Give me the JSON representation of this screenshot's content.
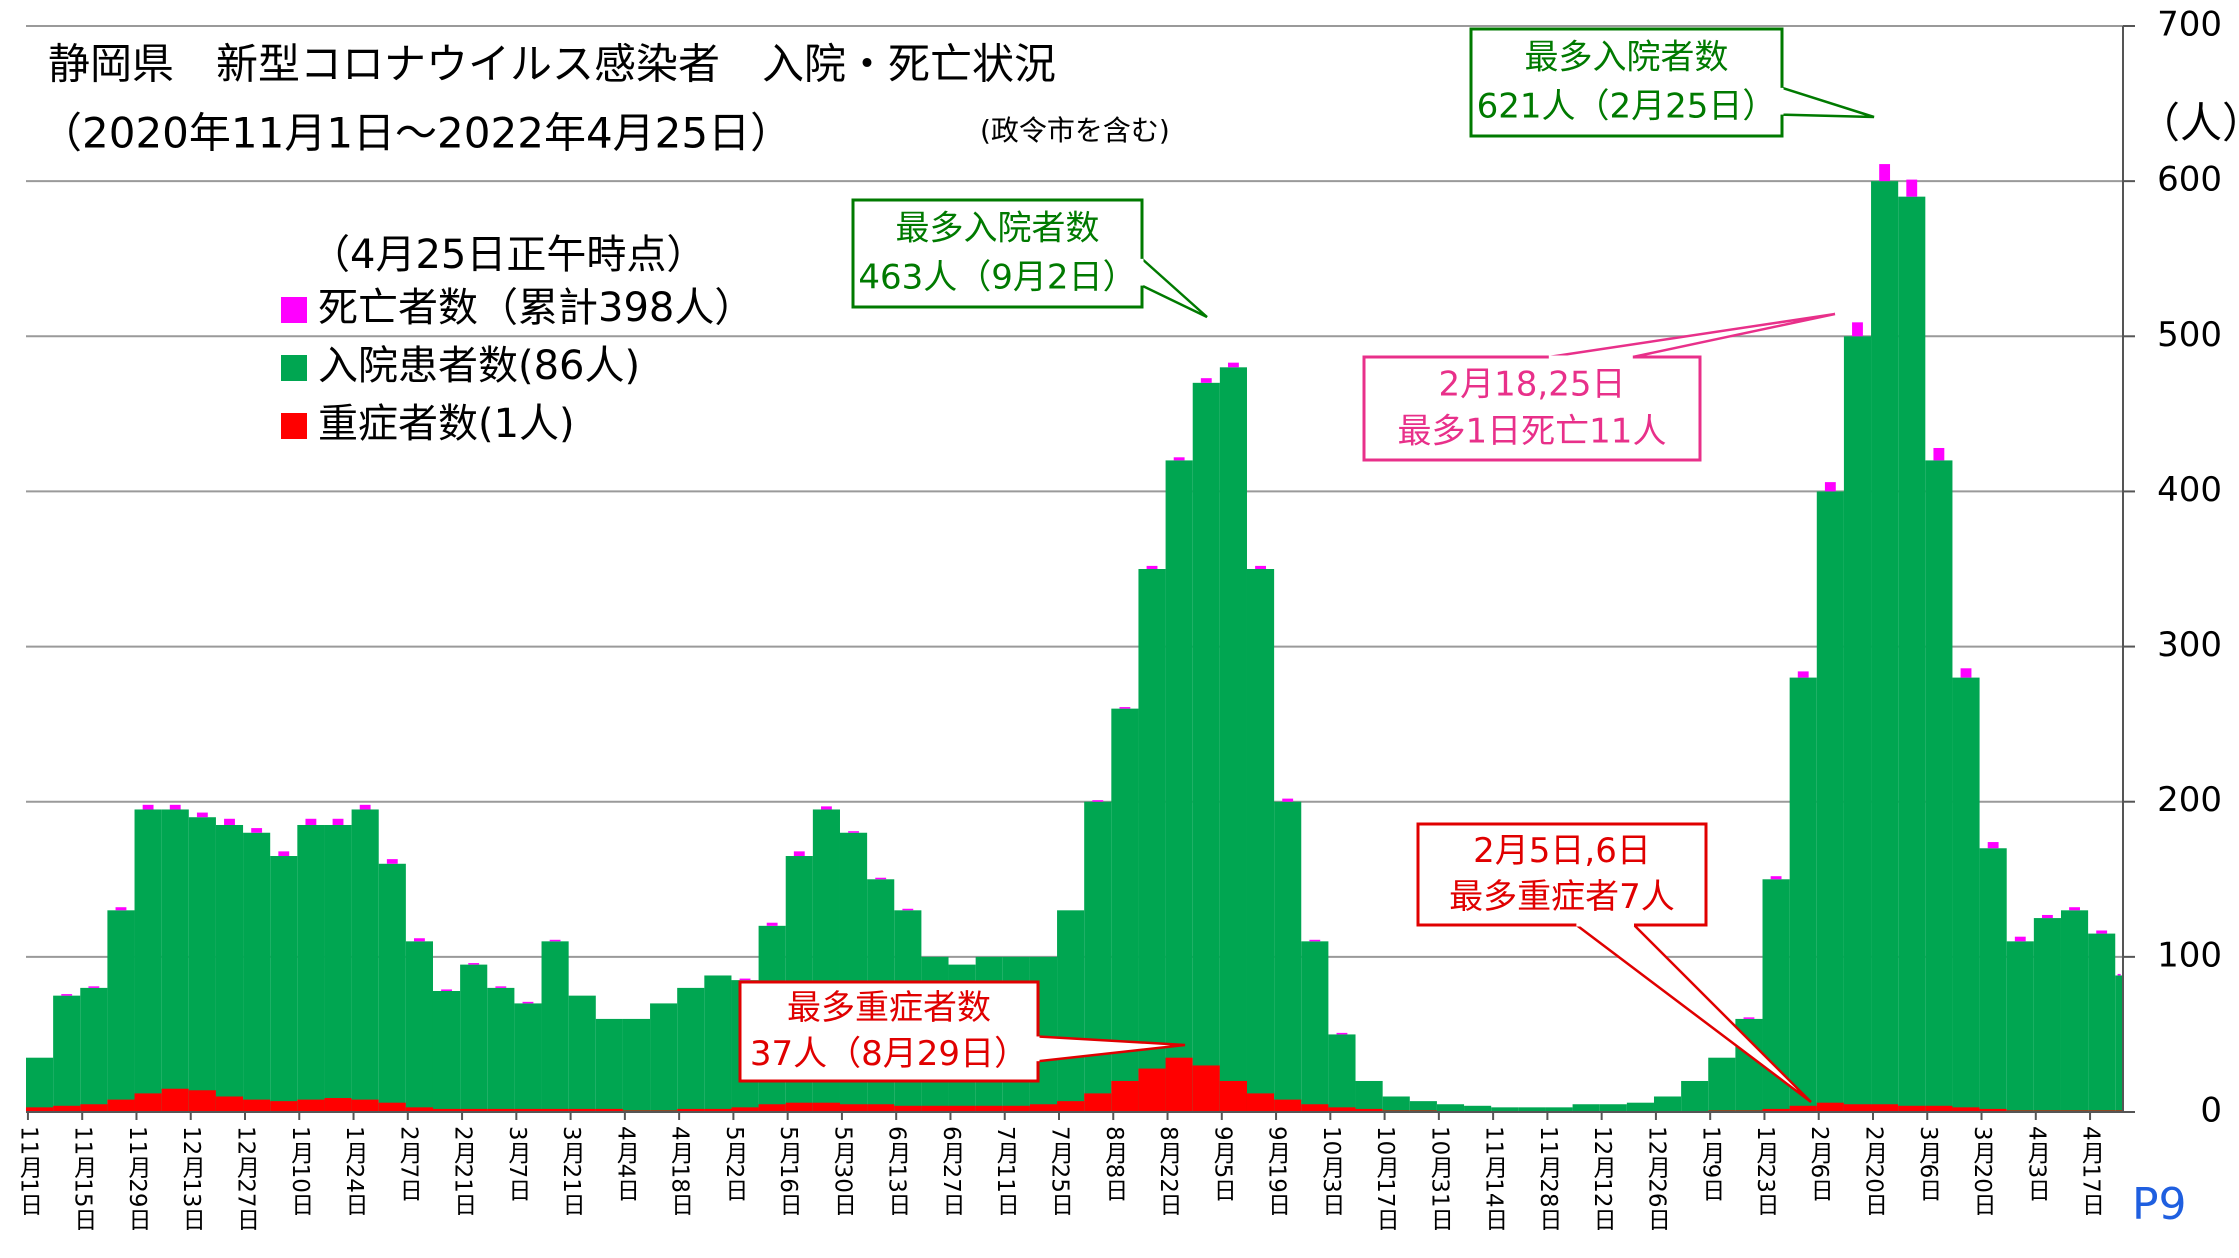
{
  "chart_data": {
    "type": "bar",
    "title": "静岡県　新型コロナウイルス感染者　入院・死亡状況",
    "subtitle": "（2020年11月1日～2022年4月25日）",
    "subtitle_note": "(政令市を含む)",
    "legend_title": "（4月25日正午時点）",
    "y_label": "（人）",
    "page_label": "P9",
    "categories": [
      "11月1日",
      null,
      "11月15日",
      null,
      "11月29日",
      null,
      "12月13日",
      null,
      "12月27日",
      null,
      "1月10日",
      null,
      "1月24日",
      null,
      "2月7日",
      null,
      "2月21日",
      null,
      "3月7日",
      null,
      "3月21日",
      null,
      "4月4日",
      null,
      "4月18日",
      null,
      "5月2日",
      null,
      "5月16日",
      null,
      "5月30日",
      null,
      "6月13日",
      null,
      "6月27日",
      null,
      "7月11日",
      null,
      "7月25日",
      null,
      "8月8日",
      null,
      "8月22日",
      null,
      "9月5日",
      null,
      "9月19日",
      null,
      "10月3日",
      null,
      "10月17日",
      null,
      "10月31日",
      null,
      "11月14日",
      null,
      "11月28日",
      null,
      "12月12日",
      null,
      "12月26日",
      null,
      "1月9日",
      null,
      "1月23日",
      null,
      "2月6日",
      null,
      "2月20日",
      null,
      "3月6日",
      null,
      "3月20日",
      null,
      "4月3日",
      null,
      "4月17日",
      null
    ],
    "series": [
      {
        "name": "入院患者数(86人)",
        "color": "#00a651",
        "values": [
          35,
          75,
          80,
          130,
          195,
          195,
          190,
          185,
          180,
          165,
          185,
          185,
          195,
          160,
          110,
          78,
          95,
          80,
          70,
          110,
          75,
          60,
          60,
          70,
          80,
          88,
          85,
          120,
          165,
          195,
          180,
          150,
          130,
          100,
          95,
          100,
          100,
          100,
          130,
          200,
          260,
          350,
          420,
          470,
          480,
          350,
          200,
          110,
          50,
          20,
          10,
          7,
          5,
          4,
          3,
          3,
          3,
          5,
          5,
          6,
          10,
          20,
          35,
          60,
          150,
          280,
          400,
          500,
          600,
          590,
          420,
          280,
          170,
          110,
          125,
          130,
          115,
          88
        ]
      },
      {
        "name": "重症者数(1人)",
        "color": "#ff0000",
        "values": [
          3,
          4,
          5,
          8,
          12,
          15,
          14,
          10,
          8,
          7,
          8,
          9,
          8,
          6,
          3,
          2,
          2,
          2,
          2,
          2,
          2,
          2,
          1,
          1,
          2,
          2,
          3,
          5,
          6,
          6,
          5,
          5,
          4,
          4,
          4,
          4,
          4,
          5,
          7,
          12,
          20,
          28,
          35,
          30,
          20,
          12,
          8,
          5,
          3,
          2,
          1,
          1,
          0,
          0,
          0,
          0,
          0,
          0,
          0,
          0,
          0,
          0,
          1,
          1,
          2,
          4,
          6,
          5,
          5,
          4,
          4,
          3,
          2,
          1,
          1,
          1,
          1,
          1
        ]
      },
      {
        "name": "死亡者数（累計398人）",
        "color": "#ff00ff",
        "values": [
          0,
          1,
          1,
          2,
          3,
          3,
          3,
          4,
          3,
          3,
          4,
          4,
          3,
          3,
          2,
          1,
          1,
          1,
          1,
          1,
          0,
          0,
          0,
          0,
          0,
          0,
          1,
          2,
          3,
          2,
          1,
          1,
          1,
          0,
          0,
          0,
          0,
          0,
          0,
          1,
          1,
          2,
          2,
          3,
          3,
          2,
          2,
          1,
          1,
          0,
          0,
          0,
          0,
          0,
          0,
          0,
          0,
          0,
          0,
          0,
          0,
          0,
          0,
          1,
          2,
          4,
          6,
          9,
          11,
          11,
          8,
          6,
          4,
          3,
          2,
          2,
          2,
          1
        ]
      }
    ],
    "legend_order": [
      2,
      0,
      1
    ],
    "ylim": [
      0,
      700
    ],
    "yticks": [
      0,
      100,
      200,
      300,
      400,
      500,
      600,
      700
    ],
    "grid": true,
    "annotations": [
      {
        "lines": [
          "最多入院者数",
          "621人（2月25日）"
        ],
        "color": "#007a00"
      },
      {
        "lines": [
          "最多入院者数",
          "463人（9月2日）"
        ],
        "color": "#007a00"
      },
      {
        "lines": [
          "2月18,25日",
          "最多1日死亡11人"
        ],
        "color": "#e8308a"
      },
      {
        "lines": [
          "2月5日,6日",
          "最多重症者7人"
        ],
        "color": "#e00000"
      },
      {
        "lines": [
          "最多重症者数",
          "37人（8月29日）"
        ],
        "color": "#e00000"
      }
    ]
  }
}
